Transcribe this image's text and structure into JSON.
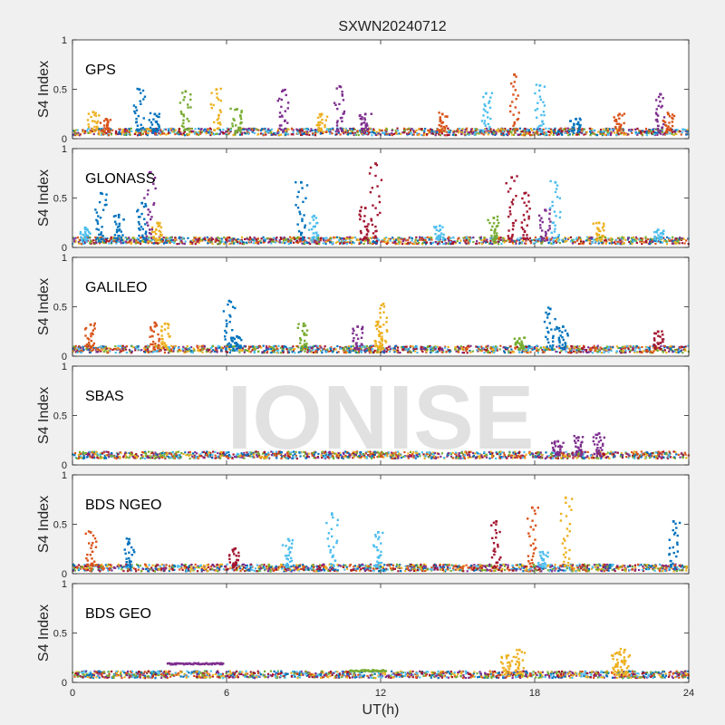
{
  "chart_data": {
    "type": "scatter",
    "title": "SXWN20240712",
    "xlabel": "UT(h)",
    "ylabel": "S4 Index",
    "xlim": [
      0,
      24
    ],
    "ylim": [
      0,
      1
    ],
    "xticks": [
      "0",
      "6",
      "12",
      "18",
      "24"
    ],
    "yticks": [
      "0",
      "0.5",
      "1"
    ],
    "watermark": "IONISE",
    "series_colors": [
      "#0072BD",
      "#D95319",
      "#EDB120",
      "#7E2F8E",
      "#77AC30",
      "#4DBEEE",
      "#A2142F"
    ],
    "panels": [
      {
        "label": "GPS",
        "baseline": 0.07,
        "spikes": [
          [
            0.8,
            0.27,
            "#EDB120"
          ],
          [
            1.3,
            0.2,
            "#D95319"
          ],
          [
            2.6,
            0.5,
            "#0072BD"
          ],
          [
            3.2,
            0.25,
            "#0072BD"
          ],
          [
            4.4,
            0.48,
            "#77AC30"
          ],
          [
            5.6,
            0.5,
            "#EDB120"
          ],
          [
            6.4,
            0.3,
            "#77AC30"
          ],
          [
            8.2,
            0.49,
            "#7E2F8E"
          ],
          [
            9.7,
            0.25,
            "#EDB120"
          ],
          [
            10.4,
            0.53,
            "#7E2F8E"
          ],
          [
            11.4,
            0.25,
            "#7E2F8E"
          ],
          [
            14.4,
            0.25,
            "#D95319"
          ],
          [
            16.1,
            0.46,
            "#4DBEEE"
          ],
          [
            17.2,
            0.65,
            "#D95319"
          ],
          [
            18.2,
            0.54,
            "#4DBEEE"
          ],
          [
            19.6,
            0.2,
            "#0072BD"
          ],
          [
            21.3,
            0.25,
            "#D95319"
          ],
          [
            22.9,
            0.45,
            "#7E2F8E"
          ],
          [
            23.2,
            0.25,
            "#D95319"
          ]
        ]
      },
      {
        "label": "GLONASS",
        "baseline": 0.07,
        "spikes": [
          [
            0.5,
            0.2,
            "#4DBEEE"
          ],
          [
            1.1,
            0.55,
            "#0072BD"
          ],
          [
            1.8,
            0.33,
            "#0072BD"
          ],
          [
            2.7,
            0.45,
            "#0072BD"
          ],
          [
            3.0,
            0.76,
            "#7E2F8E"
          ],
          [
            3.3,
            0.25,
            "#EDB120"
          ],
          [
            8.9,
            0.66,
            "#0072BD"
          ],
          [
            9.4,
            0.32,
            "#4DBEEE"
          ],
          [
            11.4,
            0.4,
            "#A2142F"
          ],
          [
            11.8,
            0.85,
            "#A2142F"
          ],
          [
            14.3,
            0.22,
            "#4DBEEE"
          ],
          [
            16.4,
            0.3,
            "#77AC30"
          ],
          [
            17.1,
            0.71,
            "#A2142F"
          ],
          [
            17.6,
            0.55,
            "#A2142F"
          ],
          [
            18.4,
            0.38,
            "#7E2F8E"
          ],
          [
            18.8,
            0.66,
            "#4DBEEE"
          ],
          [
            20.5,
            0.25,
            "#EDB120"
          ],
          [
            22.8,
            0.18,
            "#4DBEEE"
          ]
        ]
      },
      {
        "label": "GALILEO",
        "baseline": 0.07,
        "spikes": [
          [
            0.7,
            0.32,
            "#D95319"
          ],
          [
            3.2,
            0.34,
            "#D95319"
          ],
          [
            3.6,
            0.33,
            "#EDB120"
          ],
          [
            6.1,
            0.56,
            "#0072BD"
          ],
          [
            6.4,
            0.2,
            "#0072BD"
          ],
          [
            9.0,
            0.33,
            "#77AC30"
          ],
          [
            11.1,
            0.3,
            "#7E2F8E"
          ],
          [
            11.9,
            0.35,
            "#EDB120"
          ],
          [
            12.1,
            0.53,
            "#EDB120"
          ],
          [
            17.4,
            0.18,
            "#77AC30"
          ],
          [
            18.6,
            0.48,
            "#0072BD"
          ],
          [
            19.1,
            0.3,
            "#0072BD"
          ],
          [
            22.8,
            0.25,
            "#A2142F"
          ]
        ]
      },
      {
        "label": "SBAS",
        "baseline": 0.1,
        "spikes": [
          [
            18.9,
            0.24,
            "#7E2F8E"
          ],
          [
            19.7,
            0.28,
            "#7E2F8E"
          ],
          [
            20.5,
            0.32,
            "#7E2F8E"
          ]
        ]
      },
      {
        "label": "BDS NGEO",
        "baseline": 0.06,
        "spikes": [
          [
            0.7,
            0.42,
            "#D95319"
          ],
          [
            2.2,
            0.35,
            "#0072BD"
          ],
          [
            6.3,
            0.25,
            "#A2142F"
          ],
          [
            8.4,
            0.35,
            "#4DBEEE"
          ],
          [
            10.1,
            0.6,
            "#4DBEEE"
          ],
          [
            11.9,
            0.42,
            "#4DBEEE"
          ],
          [
            16.5,
            0.53,
            "#A2142F"
          ],
          [
            17.9,
            0.67,
            "#D95319"
          ],
          [
            19.2,
            0.77,
            "#EDB120"
          ],
          [
            18.3,
            0.22,
            "#4DBEEE"
          ],
          [
            23.4,
            0.53,
            "#0072BD"
          ]
        ]
      },
      {
        "label": "BDS GEO",
        "baseline": 0.08,
        "spikes": [
          [
            16.9,
            0.27,
            "#EDB120"
          ],
          [
            17.4,
            0.33,
            "#EDB120"
          ],
          [
            21.2,
            0.3,
            "#EDB120"
          ],
          [
            21.5,
            0.33,
            "#EDB120"
          ]
        ],
        "plateaus": [
          {
            "x_range": [
              3.7,
              5.9
            ],
            "y": 0.19,
            "color": "#7E2F8E"
          },
          {
            "x_range": [
              10.8,
              12.2
            ],
            "y": 0.12,
            "color": "#77AC30"
          }
        ]
      }
    ]
  }
}
